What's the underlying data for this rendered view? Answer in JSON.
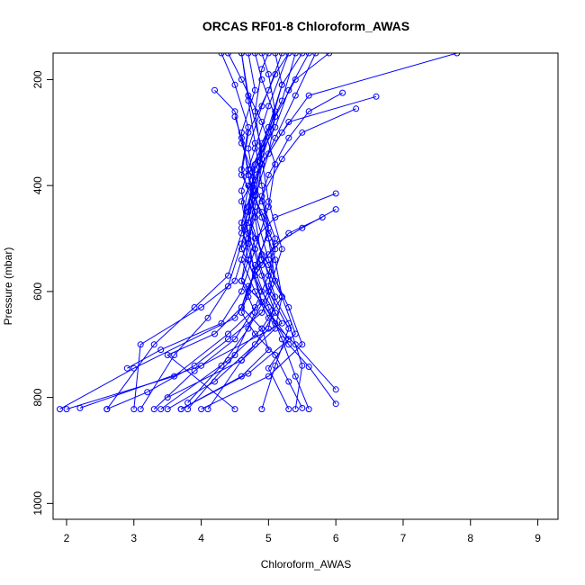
{
  "chart_data": {
    "type": "line",
    "title": "ORCAS RF01-8 Chloroform_AWAS",
    "xlabel": "Chloroform_AWAS",
    "ylabel": "Pressure (mbar)",
    "xlim": [
      1.8,
      9.3
    ],
    "ylim": [
      1030,
      150
    ],
    "y_reversed": true,
    "x_ticks": [
      2,
      3,
      4,
      5,
      6,
      7,
      8,
      9
    ],
    "y_ticks": [
      200,
      400,
      600,
      800,
      1000
    ],
    "grid": false,
    "legend": "none",
    "color": "#0000ff",
    "marker": "open-circle",
    "series": [
      {
        "x": [
          4.6,
          4.7,
          4.9,
          4.8,
          5.0,
          5.1,
          4.9,
          4.4,
          3.9,
          3.2,
          2.6
        ],
        "y": [
          150,
          230,
          330,
          420,
          500,
          580,
          640,
          690,
          740,
          790,
          822
        ]
      },
      {
        "x": [
          5.5,
          5.2,
          5.0,
          4.7,
          4.8,
          4.6,
          4.8,
          5.0,
          5.4,
          6.0
        ],
        "y": [
          150,
          210,
          300,
          380,
          460,
          540,
          600,
          650,
          700,
          785
        ]
      },
      {
        "x": [
          6.6,
          5.3,
          4.9,
          4.6,
          4.7,
          4.8,
          4.9,
          4.4,
          3.6,
          2.0
        ],
        "y": [
          232,
          280,
          360,
          430,
          500,
          570,
          620,
          680,
          760,
          822
        ]
      },
      {
        "x": [
          5.9,
          5.4,
          5.1,
          4.9,
          4.7,
          4.6,
          4.9,
          5.2,
          4.0,
          2.2
        ],
        "y": [
          150,
          200,
          270,
          350,
          440,
          520,
          600,
          660,
          740,
          820
        ]
      },
      {
        "x": [
          4.3,
          4.5,
          4.7,
          4.6,
          4.8,
          5.0,
          5.2,
          5.1,
          4.6,
          3.5
        ],
        "y": [
          150,
          210,
          290,
          370,
          450,
          540,
          610,
          670,
          730,
          800
        ]
      },
      {
        "x": [
          6.3,
          5.5,
          5.2,
          4.9,
          5.0,
          4.8,
          4.7,
          4.5,
          3.0,
          1.9
        ],
        "y": [
          255,
          300,
          350,
          420,
          490,
          550,
          610,
          650,
          745,
          822
        ]
      },
      {
        "x": [
          6.0,
          5.1,
          4.8,
          4.7,
          4.6,
          4.9,
          5.1,
          5.3,
          5.6,
          6.0
        ],
        "y": [
          415,
          460,
          500,
          540,
          580,
          620,
          660,
          700,
          742,
          812
        ]
      },
      {
        "x": [
          4.2,
          4.5,
          4.6,
          4.8,
          4.7,
          5.0,
          5.3,
          5.5,
          5.0,
          4.0
        ],
        "y": [
          220,
          260,
          320,
          390,
          470,
          550,
          630,
          700,
          760,
          822
        ]
      },
      {
        "x": [
          5.3,
          5.1,
          4.9,
          4.7,
          4.8,
          4.6,
          4.4,
          3.9,
          3.3,
          2.6
        ],
        "y": [
          150,
          190,
          250,
          330,
          410,
          490,
          570,
          630,
          700,
          822
        ]
      },
      {
        "x": [
          6.1,
          5.6,
          5.3,
          5.0,
          4.8,
          4.9,
          5.2,
          5.4,
          4.7,
          3.7
        ],
        "y": [
          225,
          260,
          310,
          380,
          460,
          540,
          610,
          680,
          755,
          822
        ]
      },
      {
        "x": [
          4.8,
          4.9,
          5.1,
          5.0,
          4.8,
          4.7,
          4.5,
          4.0,
          3.1,
          3.0
        ],
        "y": [
          150,
          200,
          270,
          340,
          420,
          500,
          580,
          630,
          700,
          822
        ]
      },
      {
        "x": [
          5.2,
          5.0,
          4.7,
          4.6,
          4.9,
          5.1,
          5.0,
          5.3,
          5.5,
          5.4
        ],
        "y": [
          150,
          220,
          300,
          380,
          450,
          520,
          590,
          660,
          740,
          822
        ]
      },
      {
        "x": [
          5.8,
          5.3,
          5.0,
          4.8,
          4.7,
          4.6,
          4.8,
          5.1,
          5.3,
          5.5
        ],
        "y": [
          460,
          490,
          530,
          560,
          600,
          640,
          680,
          720,
          770,
          820
        ]
      },
      {
        "x": [
          4.6,
          4.7,
          4.8,
          4.9,
          5.0,
          4.8,
          4.6,
          4.2,
          3.5,
          4.5
        ],
        "y": [
          150,
          240,
          320,
          400,
          480,
          560,
          630,
          680,
          720,
          822
        ]
      },
      {
        "x": [
          5.0,
          4.9,
          4.8,
          4.9,
          5.0,
          5.2,
          5.0,
          4.7,
          4.3,
          3.8
        ],
        "y": [
          150,
          180,
          260,
          350,
          430,
          520,
          600,
          670,
          740,
          810
        ]
      },
      {
        "x": [
          5.7,
          5.4,
          5.1,
          4.8,
          4.6,
          4.7,
          4.9,
          5.3,
          5.0,
          5.3
        ],
        "y": [
          150,
          230,
          310,
          390,
          470,
          540,
          620,
          690,
          745,
          822
        ]
      },
      {
        "x": [
          4.5,
          4.6,
          4.7,
          4.9,
          5.1,
          5.0,
          4.8,
          4.5,
          3.9,
          3.3
        ],
        "y": [
          270,
          310,
          370,
          430,
          500,
          570,
          630,
          690,
          750,
          822
        ]
      },
      {
        "x": [
          5.1,
          5.2,
          5.0,
          4.8,
          4.7,
          4.9,
          5.1,
          5.0,
          4.6,
          4.1
        ],
        "y": [
          150,
          210,
          290,
          370,
          450,
          530,
          610,
          670,
          730,
          822
        ]
      },
      {
        "x": [
          7.8,
          5.6,
          5.2,
          4.9,
          4.8,
          4.7,
          4.6,
          4.8,
          4.5,
          3.8
        ],
        "y": [
          150,
          230,
          300,
          360,
          440,
          510,
          580,
          640,
          720,
          822
        ]
      },
      {
        "x": [
          4.9,
          5.0,
          5.1,
          4.9,
          4.8,
          4.6,
          4.4,
          4.1,
          3.6,
          3.1
        ],
        "y": [
          150,
          190,
          260,
          340,
          420,
          510,
          590,
          650,
          720,
          822
        ]
      },
      {
        "x": [
          5.4,
          5.2,
          4.9,
          4.7,
          4.6,
          4.8,
          5.0,
          5.2,
          5.4,
          5.6
        ],
        "y": [
          150,
          240,
          320,
          400,
          480,
          560,
          630,
          690,
          760,
          822
        ]
      },
      {
        "x": [
          4.7,
          4.8,
          4.6,
          4.7,
          4.9,
          5.1,
          5.2,
          4.9,
          4.4,
          3.4
        ],
        "y": [
          150,
          220,
          300,
          380,
          460,
          540,
          610,
          670,
          730,
          822
        ]
      },
      {
        "x": [
          6.0,
          5.5,
          5.1,
          4.9,
          4.7,
          4.6,
          4.9,
          5.0,
          4.6,
          3.7
        ],
        "y": [
          445,
          480,
          510,
          550,
          590,
          630,
          670,
          710,
          760,
          822
        ]
      },
      {
        "x": [
          5.3,
          5.0,
          4.8,
          4.6,
          4.7,
          4.9,
          5.1,
          4.8,
          4.2,
          3.5
        ],
        "y": [
          150,
          250,
          330,
          410,
          490,
          570,
          640,
          700,
          770,
          822
        ]
      },
      {
        "x": [
          4.4,
          4.6,
          4.9,
          5.1,
          5.0,
          4.8,
          4.6,
          4.3,
          3.4,
          2.9
        ],
        "y": [
          150,
          200,
          280,
          360,
          440,
          520,
          600,
          660,
          710,
          745
        ]
      },
      {
        "x": [
          5.6,
          5.3,
          5.1,
          4.8,
          4.7,
          4.8,
          5.0,
          5.3,
          5.1,
          4.9
        ],
        "y": [
          150,
          220,
          290,
          360,
          440,
          520,
          600,
          670,
          740,
          822
        ]
      }
    ]
  }
}
